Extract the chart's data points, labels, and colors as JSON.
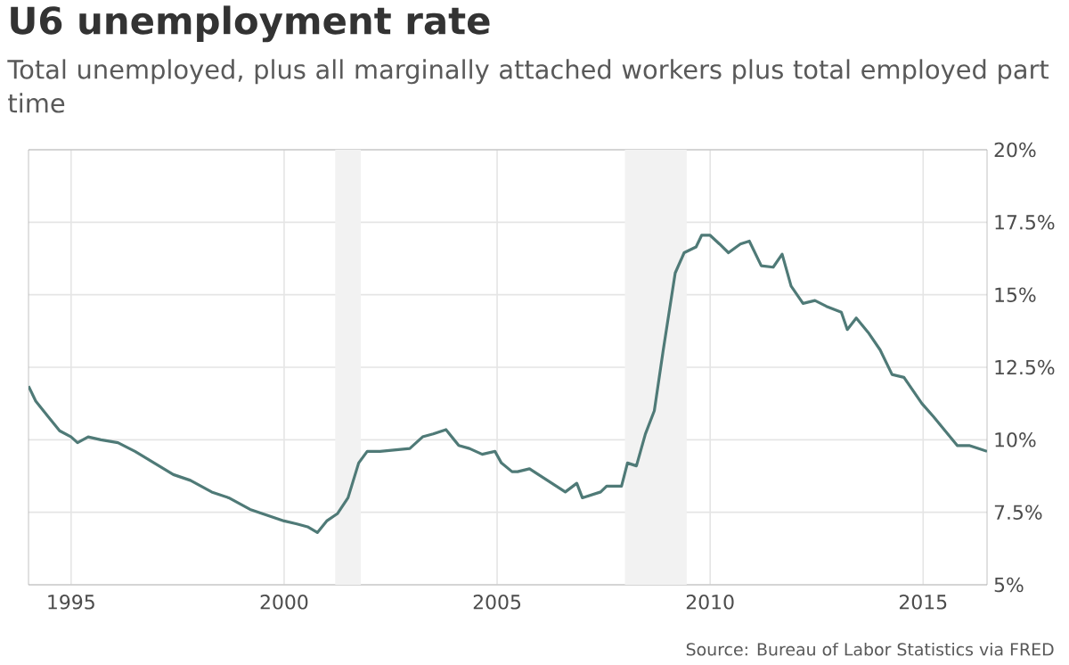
{
  "chart_data": {
    "type": "line",
    "title": "U6 unemployment rate",
    "subtitle": "Total unemployed, plus all marginally attached workers plus total employed part time",
    "x": [
      1994.0,
      1994.17,
      1994.45,
      1994.73,
      1995.0,
      1995.15,
      1995.4,
      1995.7,
      1996.1,
      1996.5,
      1996.95,
      1997.4,
      1997.8,
      1998.3,
      1998.7,
      1999.2,
      1999.6,
      2000.0,
      2000.3,
      2000.55,
      2000.78,
      2001.0,
      2001.25,
      2001.5,
      2001.75,
      2001.95,
      2002.25,
      2002.95,
      2003.25,
      2003.5,
      2003.8,
      2004.1,
      2004.35,
      2004.65,
      2004.95,
      2005.1,
      2005.35,
      2005.48,
      2005.76,
      2006.18,
      2006.6,
      2006.87,
      2007.0,
      2007.43,
      2007.57,
      2007.92,
      2008.06,
      2008.27,
      2008.48,
      2008.69,
      2008.9,
      2009.18,
      2009.39,
      2009.67,
      2009.8,
      2010.0,
      2010.22,
      2010.43,
      2010.71,
      2010.92,
      2011.2,
      2011.48,
      2011.69,
      2011.9,
      2012.18,
      2012.46,
      2012.73,
      2013.08,
      2013.22,
      2013.43,
      2013.71,
      2013.99,
      2014.27,
      2014.55,
      2014.97,
      2015.24,
      2015.52,
      2015.8,
      2016.08,
      2016.29,
      2016.5
    ],
    "values": [
      11.85,
      11.33,
      10.82,
      10.31,
      10.1,
      9.9,
      10.1,
      10.0,
      9.9,
      9.6,
      9.2,
      8.8,
      8.6,
      8.2,
      8.0,
      7.6,
      7.4,
      7.2,
      7.1,
      7.0,
      6.8,
      7.2,
      7.45,
      8.0,
      9.2,
      9.6,
      9.6,
      9.7,
      10.1,
      10.2,
      10.35,
      9.8,
      9.7,
      9.5,
      9.6,
      9.2,
      8.9,
      8.9,
      9.0,
      8.6,
      8.2,
      8.5,
      8.0,
      8.2,
      8.4,
      8.4,
      9.2,
      9.1,
      10.2,
      11.0,
      13.1,
      15.75,
      16.45,
      16.65,
      17.05,
      17.05,
      16.75,
      16.45,
      16.75,
      16.85,
      16.0,
      15.95,
      16.4,
      15.3,
      14.7,
      14.8,
      14.6,
      14.4,
      13.8,
      14.2,
      13.7,
      13.1,
      12.25,
      12.15,
      11.25,
      10.8,
      10.3,
      9.8,
      9.8,
      9.7,
      9.6
    ],
    "color": "#4f7a77",
    "xlim": [
      1994.0,
      2016.5
    ],
    "xticks": [
      1995,
      2000,
      2005,
      2010,
      2015
    ],
    "ylim": [
      5,
      20
    ],
    "yticks": [
      {
        "value": 5,
        "label": "5%"
      },
      {
        "value": 7.5,
        "label": "7.5%"
      },
      {
        "value": 10,
        "label": "10%"
      },
      {
        "value": 12.5,
        "label": "12.5%"
      },
      {
        "value": 15,
        "label": "15%"
      },
      {
        "value": 17.5,
        "label": "17.5%"
      },
      {
        "value": 20,
        "label": "20%"
      }
    ],
    "grid": true,
    "bands": [
      {
        "axis": "x",
        "from": 2001.2,
        "to": 2001.8,
        "color": "#f2f2f2"
      },
      {
        "axis": "x",
        "from": 2008.0,
        "to": 2009.45,
        "color": "#f2f2f2"
      }
    ],
    "annotations": [
      "Source: Bureau of Labor Statistics via FRED"
    ]
  }
}
